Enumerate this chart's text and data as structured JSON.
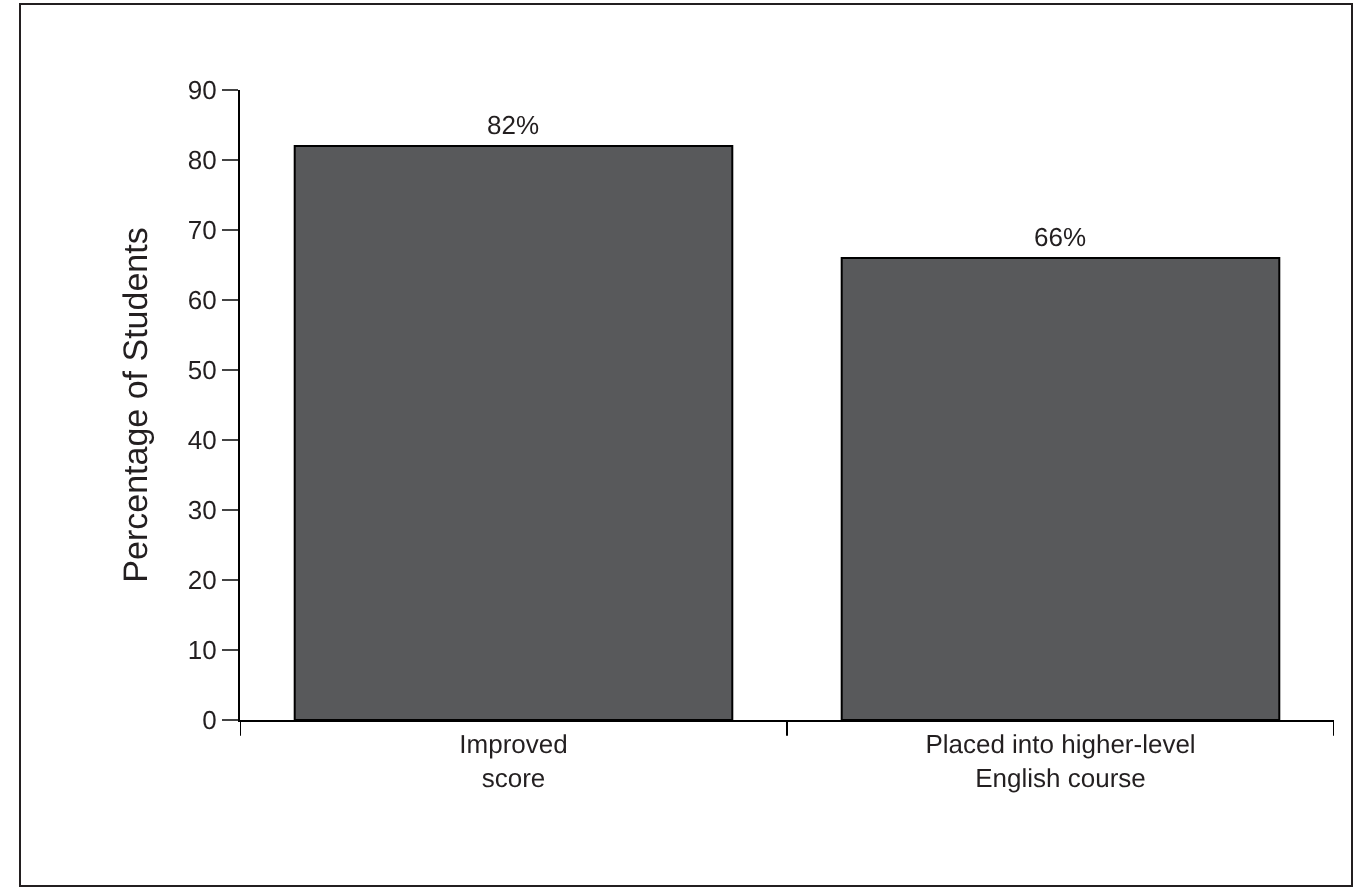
{
  "chart_data": {
    "type": "bar",
    "ylabel": "Percentage of Students",
    "categories": [
      "Improved\nscore",
      "Placed into higher-level\nEnglish course"
    ],
    "values": [
      82,
      66
    ],
    "value_labels": [
      "82%",
      "66%"
    ],
    "color": "#58595b",
    "ylim": [
      0,
      90
    ],
    "yticks": [
      0,
      10,
      20,
      30,
      40,
      50,
      60,
      70,
      80,
      90
    ]
  }
}
